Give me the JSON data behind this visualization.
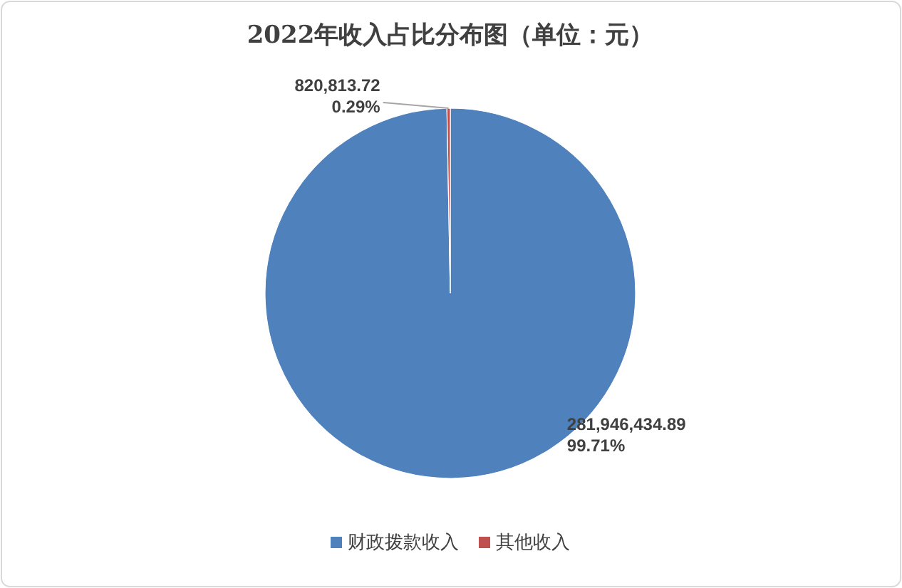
{
  "chart_data": {
    "type": "pie",
    "title": "2022年收入占比分布图（单位：元）",
    "categories": [
      "财政拨款收入",
      "其他收入"
    ],
    "values": [
      281946434.89,
      820813.72
    ],
    "colors": [
      "#4f81bd",
      "#c0504d"
    ],
    "value_labels": [
      "281,946,434.89\n99.71%",
      "820,813.72\n0.29%"
    ],
    "legend": "bottom"
  }
}
